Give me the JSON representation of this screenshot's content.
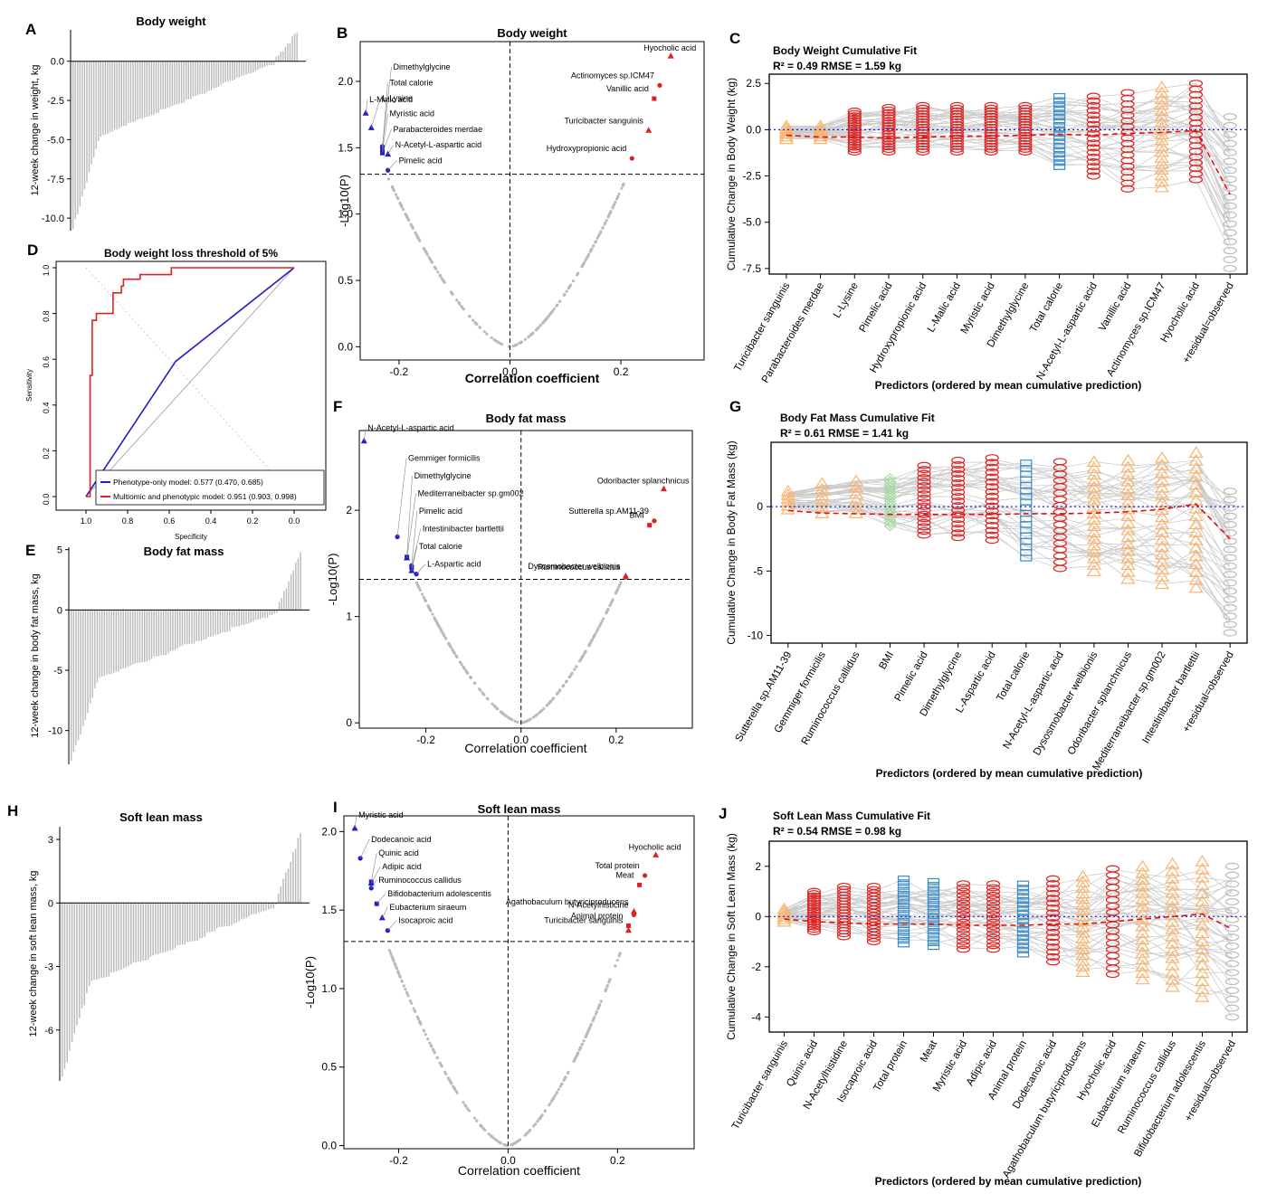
{
  "colors": {
    "red": "#dd2222",
    "blue": "#1f1fbf",
    "orange": "#f9b36b",
    "lightblue": "#3a8cc8",
    "green": "#a6d8a0",
    "grey": "#bbbbbb",
    "line": "#cccccc"
  },
  "panel_letters": [
    "A",
    "B",
    "C",
    "D",
    "E",
    "F",
    "G",
    "H",
    "I",
    "J"
  ],
  "chart_data": [
    {
      "id": "A",
      "type": "bar",
      "title": "Body weight",
      "ylabel": "12-week change in weight, kg",
      "yticks": [
        0.0,
        -2.5,
        -5.0,
        -7.5,
        -10.0
      ],
      "ytick_labels": [
        "0.0",
        "-2.5",
        "-5.0",
        "-7.5",
        "-10.0"
      ],
      "ylim": [
        -10.8,
        2.0
      ],
      "n_bars": 98,
      "min": -10.7,
      "max": 1.8,
      "note": "sorted individual changes"
    },
    {
      "id": "B",
      "type": "scatter",
      "title": "Body weight",
      "xlabel": "Correlation coefficient",
      "ylabel": "-Log10(P)",
      "xticks": [
        -0.2,
        0.0,
        0.2
      ],
      "xtick_labels": [
        "-0.2",
        "0.0",
        "0.2"
      ],
      "yticks": [
        0.0,
        0.5,
        1.0,
        1.5,
        2.0
      ],
      "ytick_labels": [
        "0.0",
        "0.5",
        "1.0",
        "1.5",
        "2.0"
      ],
      "xlim": [
        -0.27,
        0.35
      ],
      "ylim": [
        -0.1,
        2.3
      ],
      "threshold": 1.3,
      "labels_neg": [
        {
          "label": "L-Malic acid",
          "x": -0.26,
          "y": 1.76
        },
        {
          "label": "Dimethylglycine",
          "x": -0.23,
          "y": 1.51
        },
        {
          "label": "Total calorie",
          "x": -0.23,
          "y": 1.49
        },
        {
          "label": "L-Lysine",
          "x": -0.25,
          "y": 1.65
        },
        {
          "label": "Myristic acid",
          "x": -0.23,
          "y": 1.47
        },
        {
          "label": "Parabacteroides merdae",
          "x": -0.23,
          "y": 1.46
        },
        {
          "label": "N-Acetyl-L-aspartic acid",
          "x": -0.22,
          "y": 1.45
        },
        {
          "label": "Pimelic acid",
          "x": -0.22,
          "y": 1.33
        }
      ],
      "labels_pos": [
        {
          "label": "Hyocholic acid",
          "x": 0.29,
          "y": 2.19
        },
        {
          "label": "Actinomyces sp.ICM47",
          "x": 0.27,
          "y": 1.97
        },
        {
          "label": "Vanillic acid",
          "x": 0.26,
          "y": 1.87
        },
        {
          "label": "Turicibacter sanguinis",
          "x": 0.25,
          "y": 1.63
        },
        {
          "label": "Hydroxypropionic acid",
          "x": 0.22,
          "y": 1.42
        }
      ]
    },
    {
      "id": "C",
      "type": "line",
      "title": "Body Weight Cumulative Fit",
      "subtitle": "R² =  0.49  RMSE = 1.59 kg",
      "xlabel": "Predictors (ordered by mean cumulative prediction)",
      "ylabel": "Cumulative Change in Body Weight (kg)",
      "yticks": [
        2.5,
        0.0,
        -2.5,
        -5.0,
        -7.5
      ],
      "ytick_labels": [
        "2.5",
        "0.0",
        "-2.5",
        "-5.0",
        "-7.5"
      ],
      "ylim": [
        -7.8,
        3.0
      ],
      "categories": [
        "Turicibacter sanguinis",
        "Parabacteroides merdae",
        "L-Lysine",
        "Pimelic acid",
        "Hydroxypropionic acid",
        "L-Malic acid",
        "Myristic acid",
        "Dimethylglycine",
        "Total calorie",
        "N-Acetyl-L-aspartic acid",
        "Vanillic acid",
        "Actinomyces sp.ICM47",
        "Hyocholic acid",
        "+residual=observed"
      ],
      "kinds": [
        "orange",
        "orange",
        "red",
        "red",
        "red",
        "red",
        "red",
        "red",
        "blue",
        "red",
        "red",
        "orange",
        "red",
        "grey"
      ],
      "means": [
        -0.3,
        -0.4,
        -0.4,
        -0.45,
        -0.4,
        -0.35,
        -0.35,
        -0.3,
        -0.25,
        -0.3,
        -0.2,
        -0.15,
        -0.05,
        -3.5
      ],
      "lows": [
        -0.5,
        -0.5,
        -1.2,
        -1.2,
        -1.2,
        -1.2,
        -1.2,
        -1.2,
        -2.0,
        -2.5,
        -3.2,
        -3.1,
        -2.7,
        -7.5
      ],
      "highs": [
        0.2,
        0.2,
        1.0,
        1.2,
        1.3,
        1.3,
        1.3,
        1.3,
        1.8,
        1.8,
        2.0,
        2.3,
        2.5,
        0.7
      ]
    },
    {
      "id": "D",
      "type": "line",
      "title": "Body weight loss threshold of 5%",
      "xlabel": "Specificity",
      "ylabel": "Sensitivity",
      "xticks": [
        1.0,
        0.8,
        0.6,
        0.4,
        0.2,
        0.0
      ],
      "xtick_labels": [
        "1.0",
        "0.8",
        "0.6",
        "0.4",
        "0.2",
        "0.0"
      ],
      "yticks": [
        0.0,
        0.2,
        0.4,
        0.6,
        0.8,
        1.0
      ],
      "ytick_labels": [
        "0.0",
        "0.2",
        "0.4",
        "0.6",
        "0.8",
        "1.0"
      ],
      "series": [
        {
          "name": "Phenotype-only model: 0.577 (0.470, 0.685)",
          "color": "#1f1fbf",
          "points": [
            [
              1.0,
              0.0
            ],
            [
              0.57,
              0.59
            ],
            [
              0.0,
              1.0
            ]
          ]
        },
        {
          "name": "Multiomic and phenotypic model: 0.951 (0.903, 0.998)",
          "color": "#dd2222",
          "points": [
            [
              1.0,
              0.0
            ],
            [
              0.98,
              0.0
            ],
            [
              0.98,
              0.53
            ],
            [
              0.97,
              0.53
            ],
            [
              0.97,
              0.77
            ],
            [
              0.95,
              0.77
            ],
            [
              0.95,
              0.8
            ],
            [
              0.87,
              0.8
            ],
            [
              0.87,
              0.89
            ],
            [
              0.83,
              0.89
            ],
            [
              0.83,
              0.92
            ],
            [
              0.82,
              0.92
            ],
            [
              0.82,
              0.95
            ],
            [
              0.74,
              0.95
            ],
            [
              0.74,
              0.97
            ],
            [
              0.59,
              0.97
            ],
            [
              0.59,
              1.0
            ],
            [
              0.0,
              1.0
            ]
          ]
        }
      ]
    },
    {
      "id": "E",
      "type": "bar",
      "title": "Body fat mass",
      "ylabel": "12-week change in body fat mass, kg",
      "yticks": [
        5,
        0,
        -5,
        -10
      ],
      "ytick_labels": [
        "5",
        "0",
        "-5",
        "-10"
      ],
      "ylim": [
        -12.8,
        5.2
      ],
      "n_bars": 98,
      "min": -12.5,
      "max": 4.8
    },
    {
      "id": "F",
      "type": "scatter",
      "title": "Body fat mass",
      "xlabel": "Correlation coefficient",
      "ylabel": "-Log10(P)",
      "xticks": [
        -0.2,
        0.0,
        0.2
      ],
      "xtick_labels": [
        "-0.2",
        "0.0",
        "0.2"
      ],
      "yticks": [
        0,
        1,
        2
      ],
      "ytick_labels": [
        "0",
        "1",
        "2"
      ],
      "xlim": [
        -0.34,
        0.36
      ],
      "ylim": [
        -0.05,
        2.75
      ],
      "threshold": 1.35,
      "labels_neg": [
        {
          "label": "N-Acetyl-L-aspartic acid",
          "x": -0.33,
          "y": 2.65
        },
        {
          "label": "Gemmiger formicilis",
          "x": -0.26,
          "y": 1.75
        },
        {
          "label": "Dimethylglycine",
          "x": -0.24,
          "y": 1.56
        },
        {
          "label": "Mediterraneibacter sp.gm002",
          "x": -0.24,
          "y": 1.55
        },
        {
          "label": "Pimelic acid",
          "x": -0.23,
          "y": 1.48
        },
        {
          "label": "Intestinibacter bartlettii",
          "x": -0.23,
          "y": 1.46
        },
        {
          "label": "Total calorie",
          "x": -0.23,
          "y": 1.43
        },
        {
          "label": "L-Aspartic acid",
          "x": -0.22,
          "y": 1.4
        }
      ],
      "labels_pos": [
        {
          "label": "Odoribacter splanchnicus",
          "x": 0.3,
          "y": 2.2
        },
        {
          "label": "Sutterella sp.AM11-39",
          "x": 0.28,
          "y": 1.9
        },
        {
          "label": "BMI",
          "x": 0.27,
          "y": 1.86
        },
        {
          "label": "Dysosmobacter welbionis",
          "x": 0.22,
          "y": 1.38
        },
        {
          "label": "Ruminococcus callidus",
          "x": 0.22,
          "y": 1.37
        }
      ]
    },
    {
      "id": "G",
      "type": "line",
      "title": "Body Fat Mass Cumulative Fit",
      "subtitle": "R² = 0.61  RMSE = 1.41 kg",
      "xlabel": "Predictors (ordered by mean cumulative prediction)",
      "ylabel": "Cumulative Change in Body Fat Mass (kg)",
      "yticks": [
        0,
        -5,
        -10
      ],
      "ytick_labels": [
        "0",
        "-5",
        "-10"
      ],
      "ylim": [
        -10.6,
        5.0
      ],
      "categories": [
        "Sutterella sp.AM11-39",
        "Gemmiger formicilis",
        "Ruminococcus callidus",
        "BMI",
        "Pimelic acid",
        "Dimethylglycine",
        "L-Aspartic acid",
        "Total calorie",
        "N-Acetyl-L-aspartic acid",
        "Dysosmobacter welbionis",
        "Odoribacter splanchnicus",
        "Mediterraneibacter sp.gm002",
        "Intestinibacter bartlettii",
        "+residual=observed"
      ],
      "kinds": [
        "orange",
        "orange",
        "orange",
        "green",
        "red",
        "red",
        "red",
        "blue",
        "red",
        "orange",
        "orange",
        "orange",
        "orange",
        "grey"
      ],
      "means": [
        -0.3,
        -0.5,
        -0.55,
        -0.6,
        -0.6,
        -0.6,
        -0.6,
        -0.55,
        -0.55,
        -0.5,
        -0.4,
        -0.2,
        0.2,
        -2.5
      ],
      "lows": [
        -0.2,
        -0.5,
        -0.5,
        -1.5,
        -2.2,
        -2.4,
        -2.6,
        -4.0,
        -4.8,
        -5.0,
        -5.6,
        -6.0,
        -6.3,
        -9.8
      ],
      "highs": [
        1.2,
        1.8,
        2.0,
        2.2,
        3.2,
        3.6,
        3.8,
        3.4,
        3.5,
        3.5,
        3.6,
        3.8,
        4.2,
        1.2
      ]
    },
    {
      "id": "H",
      "type": "bar",
      "title": "Soft lean mass",
      "ylabel": "12-week change in soft lean mass, kg",
      "yticks": [
        3,
        0,
        -3,
        -6
      ],
      "ytick_labels": [
        "3",
        "0",
        "-3",
        "-6"
      ],
      "ylim": [
        -8.4,
        3.6
      ],
      "n_bars": 98,
      "min": -8.2,
      "max": 3.3
    },
    {
      "id": "I",
      "type": "scatter",
      "title": "Soft lean mass",
      "xlabel": "Correlation coefficient",
      "ylabel": "-Log10(P)",
      "xticks": [
        -0.2,
        0.0,
        0.2
      ],
      "xtick_labels": [
        "-0.2",
        "0.0",
        "0.2"
      ],
      "yticks": [
        0.0,
        0.5,
        1.0,
        1.5,
        2.0
      ],
      "ytick_labels": [
        "0.0",
        "0.5",
        "1.0",
        "1.5",
        "2.0"
      ],
      "xlim": [
        -0.3,
        0.34
      ],
      "ylim": [
        -0.02,
        2.1
      ],
      "threshold": 1.3,
      "labels_neg": [
        {
          "label": "Myristic acid",
          "x": -0.28,
          "y": 2.02
        },
        {
          "label": "Dodecanoic acid",
          "x": -0.27,
          "y": 1.83
        },
        {
          "label": "Quinic acid",
          "x": -0.25,
          "y": 1.68
        },
        {
          "label": "Adipic acid",
          "x": -0.25,
          "y": 1.67
        },
        {
          "label": "Ruminococcus callidus",
          "x": -0.25,
          "y": 1.64
        },
        {
          "label": "Bifidobacterium adolescentis",
          "x": -0.24,
          "y": 1.54
        },
        {
          "label": "Eubacterium siraeum",
          "x": -0.23,
          "y": 1.45
        },
        {
          "label": "Isocaproic acid",
          "x": -0.22,
          "y": 1.37
        }
      ],
      "labels_pos": [
        {
          "label": "Hyocholic acid",
          "x": 0.27,
          "y": 1.85
        },
        {
          "label": "Total protein",
          "x": 0.25,
          "y": 1.72
        },
        {
          "label": "Meat",
          "x": 0.24,
          "y": 1.66
        },
        {
          "label": "Agathobaculum butyriciproducens",
          "x": 0.23,
          "y": 1.49
        },
        {
          "label": "N-Acetylhisticine",
          "x": 0.23,
          "y": 1.47
        },
        {
          "label": "Animal protein",
          "x": 0.22,
          "y": 1.4
        },
        {
          "label": "Turicibacter sanguinis",
          "x": 0.22,
          "y": 1.37
        }
      ]
    },
    {
      "id": "J",
      "type": "line",
      "title": "Soft Lean Mass Cumulative Fit",
      "subtitle": "R² = 0.54  RMSE = 0.98 kg",
      "xlabel": "Predictors (ordered by mean cumulative prediction)",
      "ylabel": "Cumulative Change in Soft Lean Mass (kg)",
      "yticks": [
        2,
        0,
        -2,
        -4
      ],
      "ytick_labels": [
        "2",
        "0",
        "-2",
        "-4"
      ],
      "ylim": [
        -4.6,
        3.0
      ],
      "categories": [
        "Turicibacter sanguinis",
        "Quinic acid",
        "N-Acetylhistidine",
        "Isocaproic acid",
        "Total protein",
        "Meat",
        "Myristic acid",
        "Adipic acid",
        "Animal protein",
        "Dodecanoic acid",
        "Agathobaculum butyriciproducens",
        "Hyocholic acid",
        "Eubacterium siraeum",
        "Ruminococcus callidus",
        "Bifidobacterium adolescentis",
        "+residual=observed"
      ],
      "kinds": [
        "orange",
        "red",
        "red",
        "red",
        "blue",
        "blue",
        "red",
        "red",
        "blue",
        "red",
        "orange",
        "red",
        "orange",
        "orange",
        "orange",
        "grey"
      ],
      "means": [
        -0.1,
        -0.2,
        -0.25,
        -0.3,
        -0.3,
        -0.3,
        -0.35,
        -0.35,
        -0.35,
        -0.3,
        -0.3,
        -0.2,
        -0.1,
        0.0,
        0.1,
        -0.5
      ],
      "lows": [
        -0.2,
        -0.6,
        -0.8,
        -1.0,
        -1.1,
        -1.2,
        -1.3,
        -1.3,
        -1.5,
        -1.8,
        -2.2,
        -2.3,
        -2.5,
        -2.8,
        -3.2,
        -4.0
      ],
      "highs": [
        0.3,
        1.0,
        1.2,
        1.2,
        1.5,
        1.4,
        1.3,
        1.3,
        1.3,
        1.5,
        1.6,
        1.9,
        2.0,
        2.1,
        2.2,
        2.0
      ]
    }
  ]
}
